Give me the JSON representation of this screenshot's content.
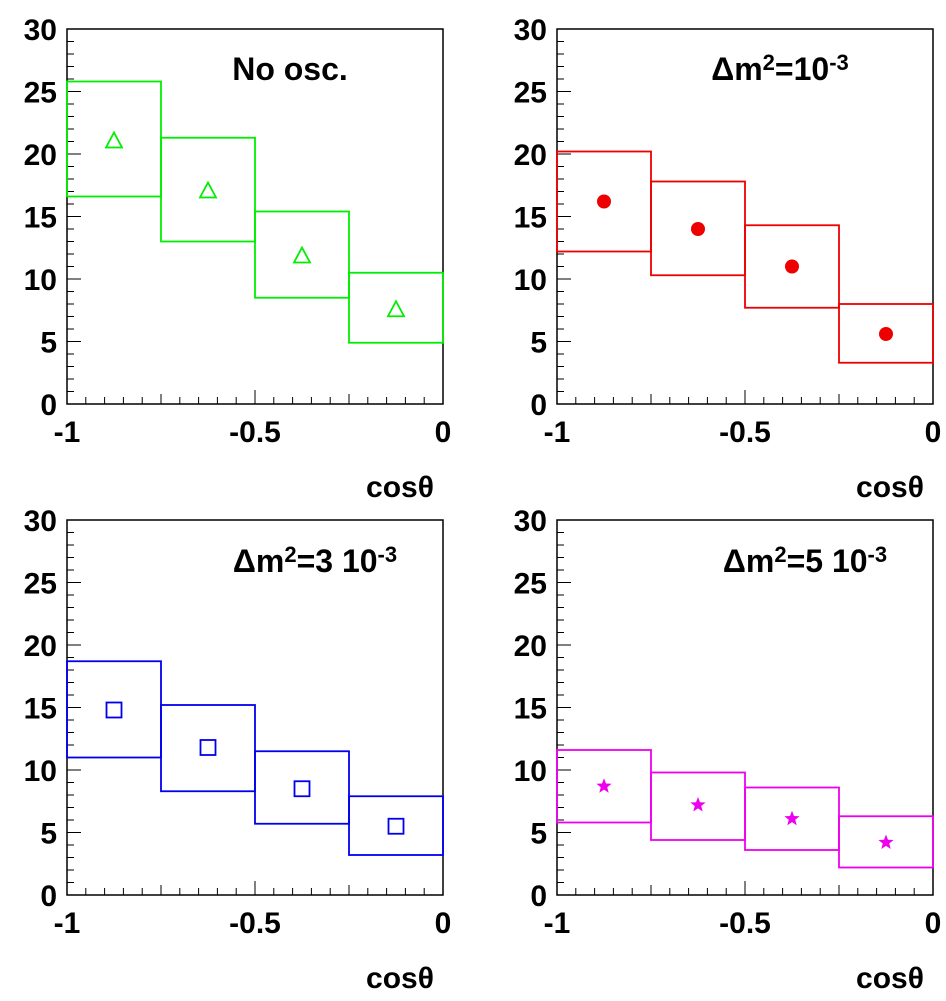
{
  "chart_data": [
    {
      "type": "scatter",
      "label": "No osc.",
      "label_parts": [
        {
          "text": "No osc.",
          "sup": false
        }
      ],
      "xlabel": "cosθ",
      "xlim": [
        -1,
        0
      ],
      "ylim": [
        0,
        30
      ],
      "x_ticks": [
        "-1",
        "-0.5",
        "0"
      ],
      "y_ticks": [
        "0",
        "5",
        "10",
        "15",
        "20",
        "25",
        "30"
      ],
      "color": "#00ee00",
      "marker": "triangle",
      "points": [
        {
          "x": -0.875,
          "y": 21.0,
          "x_low": -1.0,
          "x_high": -0.75,
          "y_low": 16.6,
          "y_high": 25.8
        },
        {
          "x": -0.625,
          "y": 17.0,
          "x_low": -0.75,
          "x_high": -0.5,
          "y_low": 13.0,
          "y_high": 21.3
        },
        {
          "x": -0.375,
          "y": 11.8,
          "x_low": -0.5,
          "x_high": -0.25,
          "y_low": 8.5,
          "y_high": 15.4
        },
        {
          "x": -0.125,
          "y": 7.5,
          "x_low": -0.25,
          "x_high": 0.0,
          "y_low": 4.9,
          "y_high": 10.5
        }
      ]
    },
    {
      "type": "scatter",
      "label": "Δm2=10-3",
      "label_parts": [
        {
          "text": "Δm",
          "sup": false
        },
        {
          "text": "2",
          "sup": true
        },
        {
          "text": "=10",
          "sup": false
        },
        {
          "text": "-3",
          "sup": true
        }
      ],
      "xlabel": "cosθ",
      "xlim": [
        -1,
        0
      ],
      "ylim": [
        0,
        30
      ],
      "x_ticks": [
        "-1",
        "-0.5",
        "0"
      ],
      "y_ticks": [
        "0",
        "5",
        "10",
        "15",
        "20",
        "25",
        "30"
      ],
      "color": "#ee0000",
      "marker": "circle",
      "points": [
        {
          "x": -0.875,
          "y": 16.2,
          "x_low": -1.0,
          "x_high": -0.75,
          "y_low": 12.2,
          "y_high": 20.2
        },
        {
          "x": -0.625,
          "y": 14.0,
          "x_low": -0.75,
          "x_high": -0.5,
          "y_low": 10.3,
          "y_high": 17.8
        },
        {
          "x": -0.375,
          "y": 11.0,
          "x_low": -0.5,
          "x_high": -0.25,
          "y_low": 7.7,
          "y_high": 14.3
        },
        {
          "x": -0.125,
          "y": 5.6,
          "x_low": -0.25,
          "x_high": 0.0,
          "y_low": 3.3,
          "y_high": 8.0
        }
      ]
    },
    {
      "type": "scatter",
      "label": "Δm2=3 10-3",
      "label_parts": [
        {
          "text": "Δm",
          "sup": false
        },
        {
          "text": "2",
          "sup": true
        },
        {
          "text": "=3 10",
          "sup": false
        },
        {
          "text": "-3",
          "sup": true
        }
      ],
      "xlabel": "cosθ",
      "xlim": [
        -1,
        0
      ],
      "ylim": [
        0,
        30
      ],
      "x_ticks": [
        "-1",
        "-0.5",
        "0"
      ],
      "y_ticks": [
        "0",
        "5",
        "10",
        "15",
        "20",
        "25",
        "30"
      ],
      "color": "#0000ee",
      "marker": "square",
      "points": [
        {
          "x": -0.875,
          "y": 14.8,
          "x_low": -1.0,
          "x_high": -0.75,
          "y_low": 11.0,
          "y_high": 18.7
        },
        {
          "x": -0.625,
          "y": 11.8,
          "x_low": -0.75,
          "x_high": -0.5,
          "y_low": 8.3,
          "y_high": 15.2
        },
        {
          "x": -0.375,
          "y": 8.5,
          "x_low": -0.5,
          "x_high": -0.25,
          "y_low": 5.7,
          "y_high": 11.5
        },
        {
          "x": -0.125,
          "y": 5.5,
          "x_low": -0.25,
          "x_high": 0.0,
          "y_low": 3.2,
          "y_high": 7.9
        }
      ]
    },
    {
      "type": "scatter",
      "label": "Δm2=5 10-3",
      "label_parts": [
        {
          "text": "Δm",
          "sup": false
        },
        {
          "text": "2",
          "sup": true
        },
        {
          "text": "=5 10",
          "sup": false
        },
        {
          "text": "-3",
          "sup": true
        }
      ],
      "xlabel": "cosθ",
      "xlim": [
        -1,
        0
      ],
      "ylim": [
        0,
        30
      ],
      "x_ticks": [
        "-1",
        "-0.5",
        "0"
      ],
      "y_ticks": [
        "0",
        "5",
        "10",
        "15",
        "20",
        "25",
        "30"
      ],
      "color": "#ee00ee",
      "marker": "star",
      "points": [
        {
          "x": -0.875,
          "y": 8.7,
          "x_low": -1.0,
          "x_high": -0.75,
          "y_low": 5.8,
          "y_high": 11.6
        },
        {
          "x": -0.625,
          "y": 7.2,
          "x_low": -0.75,
          "x_high": -0.5,
          "y_low": 4.4,
          "y_high": 9.8
        },
        {
          "x": -0.375,
          "y": 6.1,
          "x_low": -0.5,
          "x_high": -0.25,
          "y_low": 3.6,
          "y_high": 8.6
        },
        {
          "x": -0.125,
          "y": 4.2,
          "x_low": -0.25,
          "x_high": 0.0,
          "y_low": 2.2,
          "y_high": 6.3
        }
      ]
    }
  ]
}
